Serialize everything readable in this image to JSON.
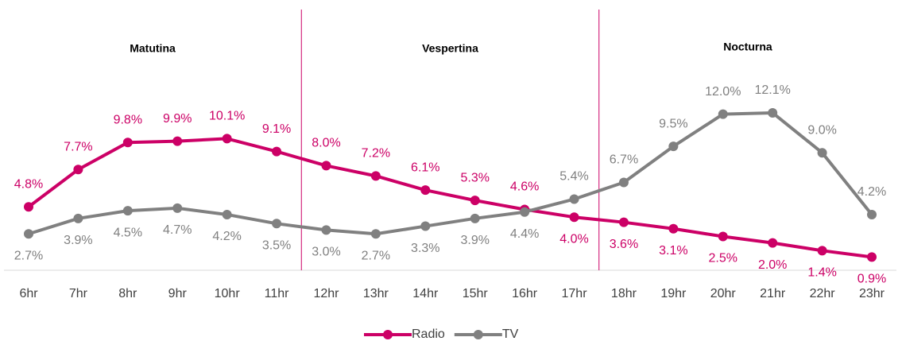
{
  "chart_data": {
    "type": "line",
    "categories": [
      "6hr",
      "7hr",
      "8hr",
      "9hr",
      "10hr",
      "11hr",
      "12hr",
      "13hr",
      "14hr",
      "15hr",
      "16hr",
      "17hr",
      "18hr",
      "19hr",
      "20hr",
      "21hr",
      "22hr",
      "23hr"
    ],
    "series": [
      {
        "name": "Radio",
        "color": "#cc0066",
        "values": [
          4.8,
          7.7,
          9.8,
          9.9,
          10.1,
          9.1,
          8.0,
          7.2,
          6.1,
          5.3,
          4.6,
          4.0,
          3.6,
          3.1,
          2.5,
          2.0,
          1.4,
          0.9
        ],
        "value_labels": [
          "4.8%",
          "7.7%",
          "9.8%",
          "9.9%",
          "10.1%",
          "9.1%",
          "8.0%",
          "7.2%",
          "6.1%",
          "5.3%",
          "4.6%",
          "4.0%",
          "3.6%",
          "3.1%",
          "2.5%",
          "2.0%",
          "1.4%",
          "0.9%"
        ]
      },
      {
        "name": "TV",
        "color": "#808080",
        "values": [
          2.7,
          3.9,
          4.5,
          4.7,
          4.2,
          3.5,
          3.0,
          2.7,
          3.3,
          3.9,
          4.4,
          5.4,
          6.7,
          9.5,
          12.0,
          12.1,
          9.0,
          4.2
        ],
        "value_labels": [
          "2.7%",
          "3.9%",
          "4.5%",
          "4.7%",
          "4.2%",
          "3.5%",
          "3.0%",
          "2.7%",
          "3.3%",
          "3.9%",
          "4.4%",
          "5.4%",
          "6.7%",
          "9.5%",
          "12.0%",
          "12.1%",
          "9.0%",
          "4.2%"
        ]
      }
    ],
    "regions": [
      {
        "label": "Matutina",
        "start": "6hr",
        "end": "11hr"
      },
      {
        "label": "Vespertina",
        "start": "12hr",
        "end": "17hr"
      },
      {
        "label": "Nocturna",
        "start": "18hr",
        "end": "23hr"
      }
    ],
    "ylim": [
      0,
      14
    ],
    "legend": "bottom"
  }
}
